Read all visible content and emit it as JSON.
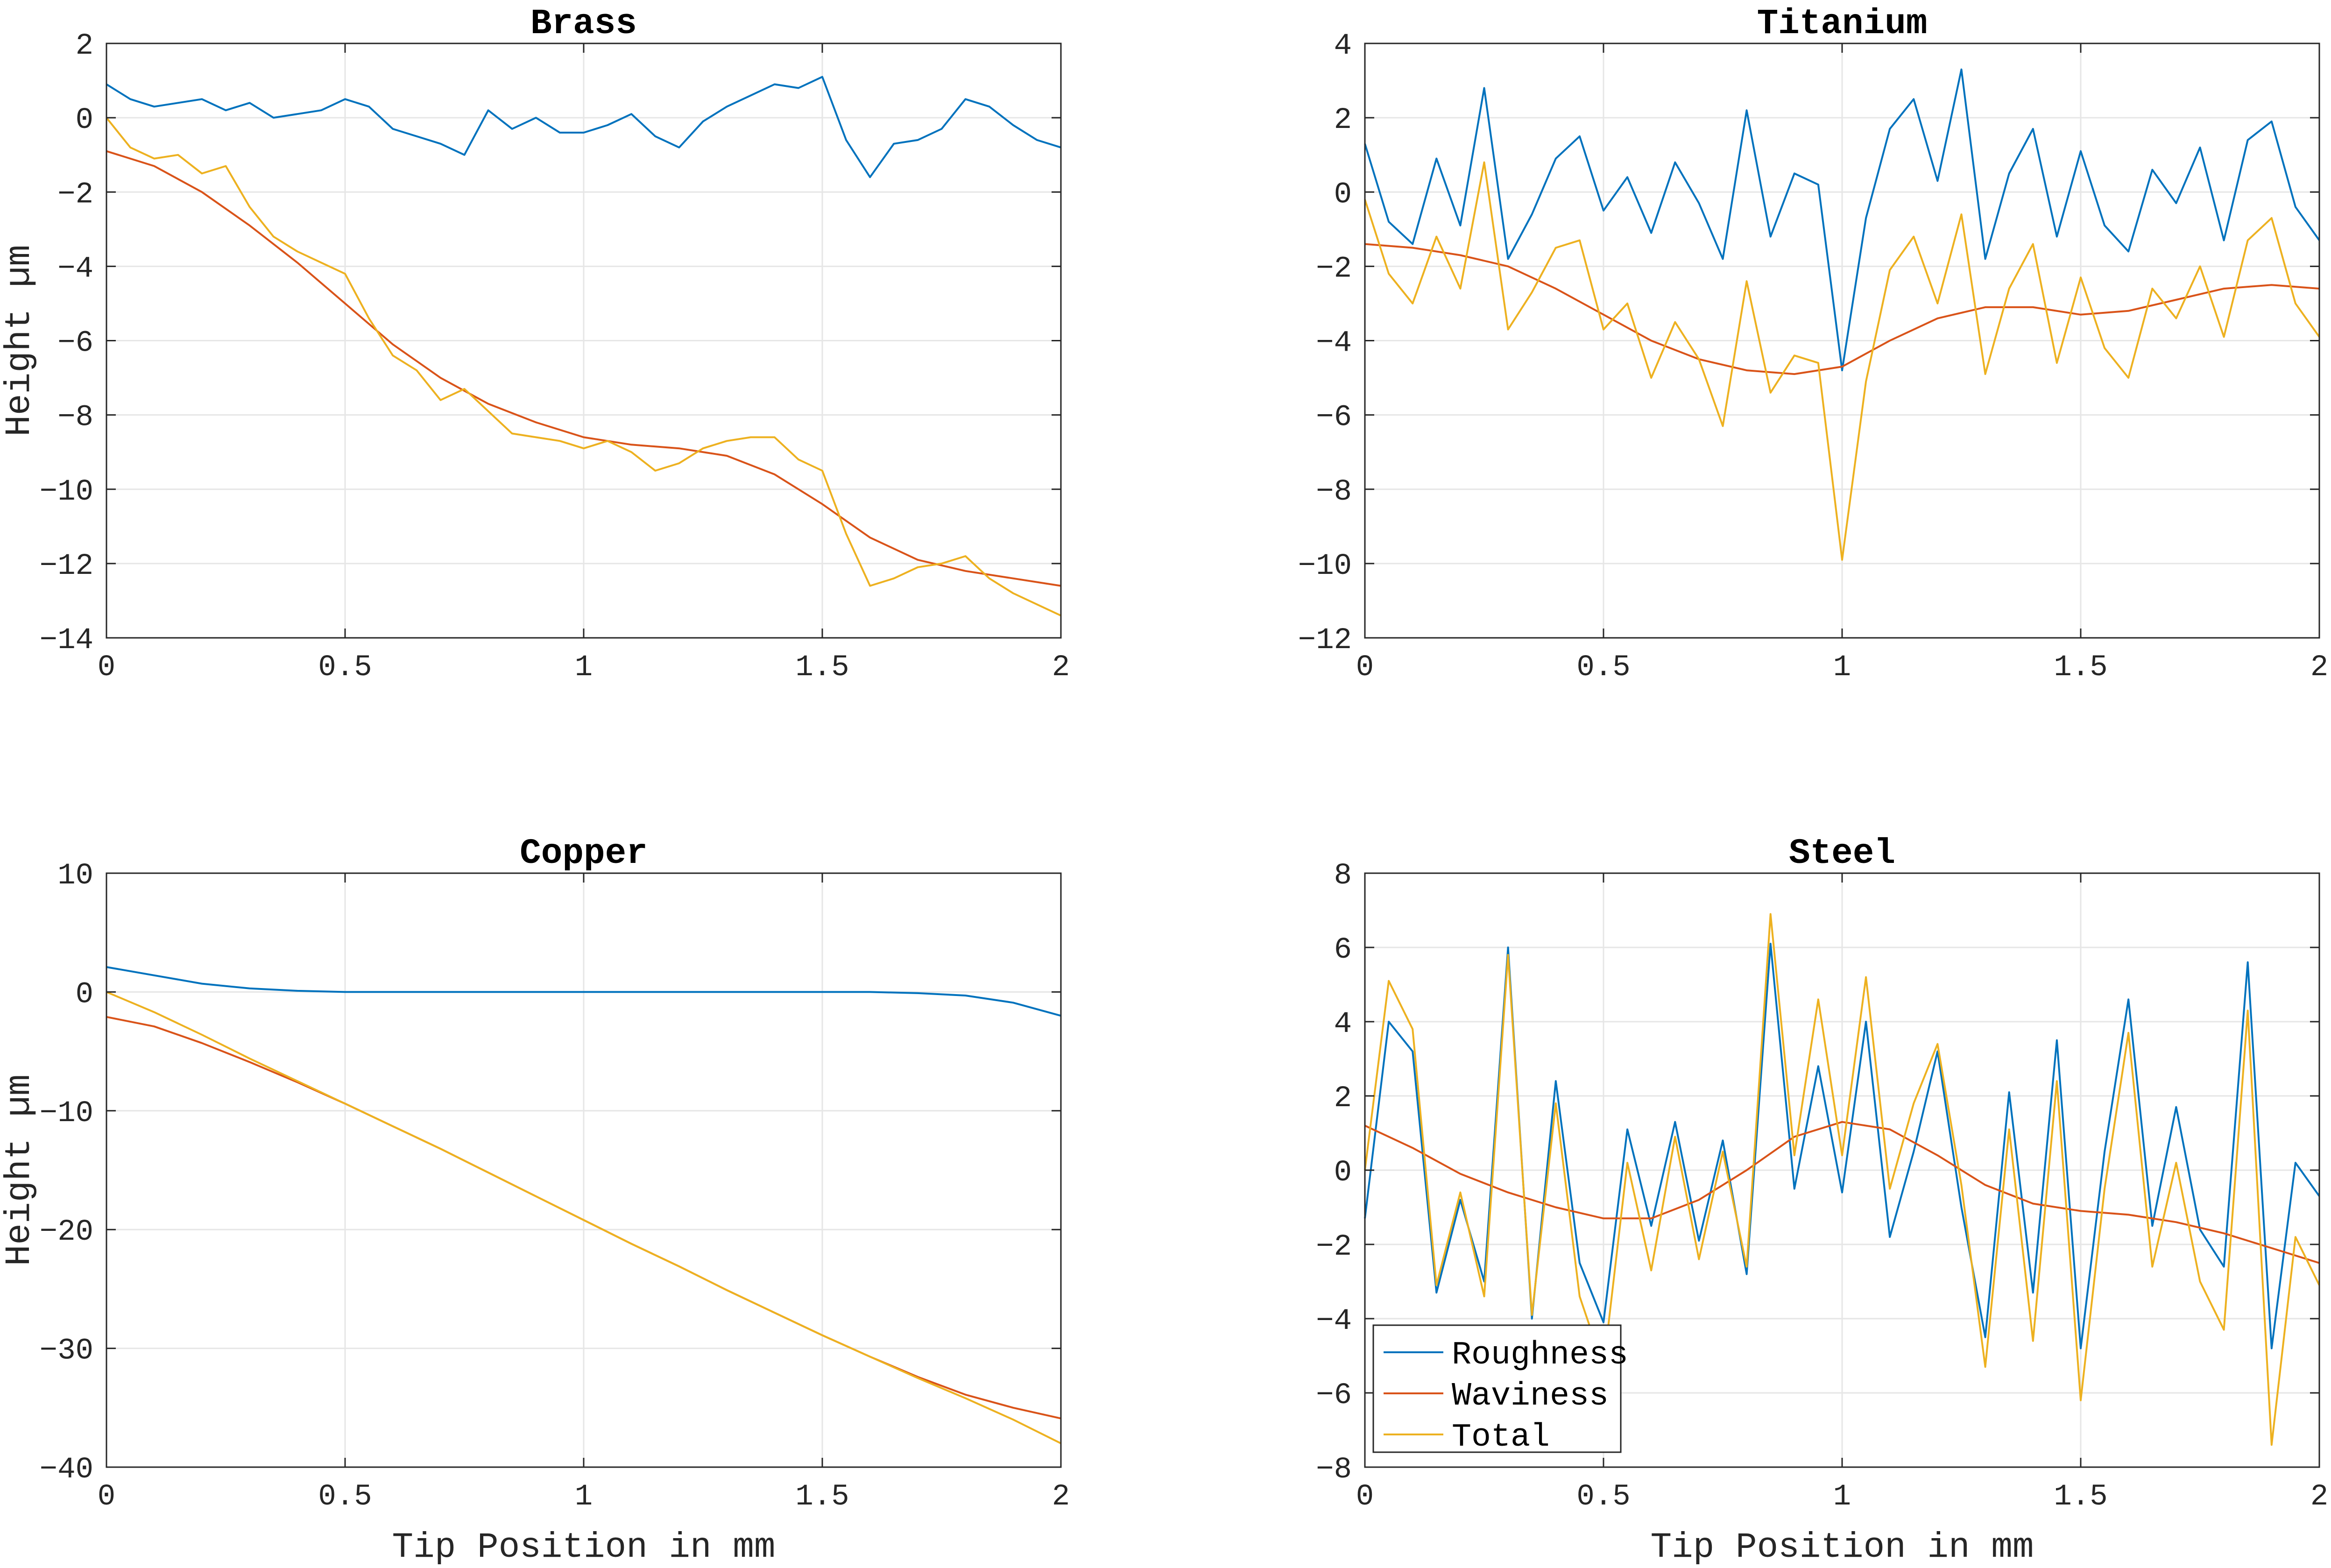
{
  "chart_data": [
    {
      "type": "line",
      "title": "Brass",
      "xlabel": "",
      "ylabel": "Height µm",
      "xlim": [
        0,
        2
      ],
      "ylim": [
        -14,
        2
      ],
      "xticks": [
        0,
        0.5,
        1,
        1.5,
        2
      ],
      "xtick_labels": [
        "0",
        "0.5",
        "1",
        "1.5",
        "2"
      ],
      "yticks": [
        -14,
        -12,
        -10,
        -8,
        -6,
        -4,
        -2,
        0,
        2
      ],
      "ytick_labels": [
        "−14",
        "−12",
        "−10",
        "−8",
        "−6",
        "−4",
        "−2",
        "0",
        "2"
      ],
      "grid": true,
      "series": [
        {
          "name": "Roughness",
          "color": "#0072BD",
          "x": [
            0,
            0.05,
            0.1,
            0.15,
            0.2,
            0.25,
            0.3,
            0.35,
            0.4,
            0.45,
            0.5,
            0.55,
            0.6,
            0.65,
            0.7,
            0.75,
            0.8,
            0.85,
            0.9,
            0.95,
            1.0,
            1.05,
            1.1,
            1.15,
            1.2,
            1.25,
            1.3,
            1.35,
            1.4,
            1.45,
            1.5,
            1.55,
            1.6,
            1.65,
            1.7,
            1.75,
            1.8,
            1.85,
            1.9,
            1.95,
            2.0
          ],
          "y": [
            0.9,
            0.5,
            0.3,
            0.4,
            0.5,
            0.2,
            0.4,
            0.0,
            0.1,
            0.2,
            0.5,
            0.3,
            -0.3,
            -0.5,
            -0.7,
            -1.0,
            0.2,
            -0.3,
            0.0,
            -0.4,
            -0.4,
            -0.2,
            0.1,
            -0.5,
            -0.8,
            -0.1,
            0.3,
            0.6,
            0.9,
            0.8,
            1.1,
            -0.6,
            -1.6,
            -0.7,
            -0.6,
            -0.3,
            0.5,
            0.3,
            -0.2,
            -0.6,
            -0.8
          ]
        },
        {
          "name": "Waviness",
          "color": "#D95319",
          "x": [
            0,
            0.1,
            0.2,
            0.3,
            0.4,
            0.5,
            0.6,
            0.7,
            0.8,
            0.9,
            1.0,
            1.1,
            1.2,
            1.3,
            1.4,
            1.5,
            1.6,
            1.7,
            1.8,
            1.9,
            2.0
          ],
          "y": [
            -0.9,
            -1.3,
            -2.0,
            -2.9,
            -3.9,
            -5.0,
            -6.1,
            -7.0,
            -7.7,
            -8.2,
            -8.6,
            -8.8,
            -8.9,
            -9.1,
            -9.6,
            -10.4,
            -11.3,
            -11.9,
            -12.2,
            -12.4,
            -12.6
          ]
        },
        {
          "name": "Total",
          "color": "#EDB120",
          "x": [
            0,
            0.05,
            0.1,
            0.15,
            0.2,
            0.25,
            0.3,
            0.35,
            0.4,
            0.45,
            0.5,
            0.55,
            0.6,
            0.65,
            0.7,
            0.75,
            0.8,
            0.85,
            0.9,
            0.95,
            1.0,
            1.05,
            1.1,
            1.15,
            1.2,
            1.25,
            1.3,
            1.35,
            1.4,
            1.45,
            1.5,
            1.55,
            1.6,
            1.65,
            1.7,
            1.75,
            1.8,
            1.85,
            1.9,
            1.95,
            2.0
          ],
          "y": [
            0.0,
            -0.8,
            -1.1,
            -1.0,
            -1.5,
            -1.3,
            -2.4,
            -3.2,
            -3.6,
            -3.9,
            -4.2,
            -5.4,
            -6.4,
            -6.8,
            -7.6,
            -7.3,
            -7.9,
            -8.5,
            -8.6,
            -8.7,
            -8.9,
            -8.7,
            -9.0,
            -9.5,
            -9.3,
            -8.9,
            -8.7,
            -8.6,
            -8.6,
            -9.2,
            -9.5,
            -11.2,
            -12.6,
            -12.4,
            -12.1,
            -12.0,
            -11.8,
            -12.4,
            -12.8,
            -13.1,
            -13.4
          ]
        }
      ]
    },
    {
      "type": "line",
      "title": "Titanium",
      "xlabel": "",
      "ylabel": "",
      "xlim": [
        0,
        2
      ],
      "ylim": [
        -12,
        4
      ],
      "xticks": [
        0,
        0.5,
        1,
        1.5,
        2
      ],
      "xtick_labels": [
        "0",
        "0.5",
        "1",
        "1.5",
        "2"
      ],
      "yticks": [
        -12,
        -10,
        -8,
        -6,
        -4,
        -2,
        0,
        2,
        4
      ],
      "ytick_labels": [
        "−12",
        "−10",
        "−8",
        "−6",
        "−4",
        "−2",
        "0",
        "2",
        "4"
      ],
      "grid": true,
      "series": [
        {
          "name": "Roughness",
          "color": "#0072BD",
          "x": [
            0,
            0.05,
            0.1,
            0.15,
            0.2,
            0.25,
            0.3,
            0.35,
            0.4,
            0.45,
            0.5,
            0.55,
            0.6,
            0.65,
            0.7,
            0.75,
            0.8,
            0.85,
            0.9,
            0.95,
            1.0,
            1.05,
            1.1,
            1.15,
            1.2,
            1.25,
            1.3,
            1.35,
            1.4,
            1.45,
            1.5,
            1.55,
            1.6,
            1.65,
            1.7,
            1.75,
            1.8,
            1.85,
            1.9,
            1.95,
            2.0
          ],
          "y": [
            1.3,
            -0.8,
            -1.4,
            0.9,
            -0.9,
            2.8,
            -1.8,
            -0.6,
            0.9,
            1.5,
            -0.5,
            0.4,
            -1.1,
            0.8,
            -0.3,
            -1.8,
            2.2,
            -1.2,
            0.5,
            0.2,
            -4.8,
            -0.7,
            1.7,
            2.5,
            0.3,
            3.3,
            -1.8,
            0.5,
            1.7,
            -1.2,
            1.1,
            -0.9,
            -1.6,
            0.6,
            -0.3,
            1.2,
            -1.3,
            1.4,
            1.9,
            -0.4,
            -1.3
          ]
        },
        {
          "name": "Waviness",
          "color": "#D95319",
          "x": [
            0,
            0.1,
            0.2,
            0.3,
            0.4,
            0.5,
            0.6,
            0.7,
            0.8,
            0.9,
            1.0,
            1.1,
            1.2,
            1.3,
            1.4,
            1.5,
            1.6,
            1.7,
            1.8,
            1.9,
            2.0
          ],
          "y": [
            -1.4,
            -1.5,
            -1.7,
            -2.0,
            -2.6,
            -3.3,
            -4.0,
            -4.5,
            -4.8,
            -4.9,
            -4.7,
            -4.0,
            -3.4,
            -3.1,
            -3.1,
            -3.3,
            -3.2,
            -2.9,
            -2.6,
            -2.5,
            -2.6
          ]
        },
        {
          "name": "Total",
          "color": "#EDB120",
          "x": [
            0,
            0.05,
            0.1,
            0.15,
            0.2,
            0.25,
            0.3,
            0.35,
            0.4,
            0.45,
            0.5,
            0.55,
            0.6,
            0.65,
            0.7,
            0.75,
            0.8,
            0.85,
            0.9,
            0.95,
            1.0,
            1.05,
            1.1,
            1.15,
            1.2,
            1.25,
            1.3,
            1.35,
            1.4,
            1.45,
            1.5,
            1.55,
            1.6,
            1.65,
            1.7,
            1.75,
            1.8,
            1.85,
            1.9,
            1.95,
            2.0
          ],
          "y": [
            -0.2,
            -2.2,
            -3.0,
            -1.2,
            -2.6,
            0.8,
            -3.7,
            -2.7,
            -1.5,
            -1.3,
            -3.7,
            -3.0,
            -5.0,
            -3.5,
            -4.5,
            -6.3,
            -2.4,
            -5.4,
            -4.4,
            -4.6,
            -9.9,
            -5.1,
            -2.1,
            -1.2,
            -3.0,
            -0.6,
            -4.9,
            -2.6,
            -1.4,
            -4.6,
            -2.3,
            -4.2,
            -5.0,
            -2.6,
            -3.4,
            -2.0,
            -3.9,
            -1.3,
            -0.7,
            -3.0,
            -3.9
          ]
        }
      ]
    },
    {
      "type": "line",
      "title": "Copper",
      "xlabel": "Tip Position in mm",
      "ylabel": "Height µm",
      "xlim": [
        0,
        2
      ],
      "ylim": [
        -40,
        10
      ],
      "xticks": [
        0,
        0.5,
        1,
        1.5,
        2
      ],
      "xtick_labels": [
        "0",
        "0.5",
        "1",
        "1.5",
        "2"
      ],
      "yticks": [
        -40,
        -30,
        -20,
        -10,
        0,
        10
      ],
      "ytick_labels": [
        "−40",
        "−30",
        "−20",
        "−10",
        "0",
        "10"
      ],
      "grid": true,
      "series": [
        {
          "name": "Roughness",
          "color": "#0072BD",
          "x": [
            0,
            0.1,
            0.2,
            0.3,
            0.4,
            0.5,
            0.6,
            0.7,
            0.8,
            0.9,
            1.0,
            1.1,
            1.2,
            1.3,
            1.4,
            1.5,
            1.6,
            1.7,
            1.8,
            1.9,
            2.0
          ],
          "y": [
            2.1,
            1.4,
            0.7,
            0.3,
            0.1,
            0.0,
            0.0,
            0.0,
            0.0,
            0.0,
            0.0,
            0.0,
            0.0,
            0.0,
            0.0,
            0.0,
            0.0,
            -0.1,
            -0.3,
            -0.9,
            -2.0
          ]
        },
        {
          "name": "Waviness",
          "color": "#D95319",
          "x": [
            0,
            0.1,
            0.2,
            0.3,
            0.4,
            0.5,
            0.6,
            0.7,
            0.8,
            0.9,
            1.0,
            1.1,
            1.2,
            1.3,
            1.4,
            1.5,
            1.6,
            1.7,
            1.8,
            1.9,
            2.0
          ],
          "y": [
            -2.1,
            -2.9,
            -4.3,
            -5.9,
            -7.6,
            -9.4,
            -11.3,
            -13.2,
            -15.2,
            -17.2,
            -19.2,
            -21.2,
            -23.1,
            -25.1,
            -27.0,
            -28.9,
            -30.7,
            -32.4,
            -33.9,
            -35.0,
            -35.9
          ]
        },
        {
          "name": "Total",
          "color": "#EDB120",
          "x": [
            0,
            0.1,
            0.2,
            0.3,
            0.4,
            0.5,
            0.6,
            0.7,
            0.8,
            0.9,
            1.0,
            1.1,
            1.2,
            1.3,
            1.4,
            1.5,
            1.6,
            1.7,
            1.8,
            1.9,
            2.0
          ],
          "y": [
            0.0,
            -1.7,
            -3.6,
            -5.6,
            -7.5,
            -9.4,
            -11.3,
            -13.2,
            -15.2,
            -17.2,
            -19.2,
            -21.2,
            -23.1,
            -25.1,
            -27.0,
            -28.9,
            -30.7,
            -32.5,
            -34.2,
            -36.0,
            -38.0
          ]
        }
      ]
    },
    {
      "type": "line",
      "title": "Steel",
      "xlabel": "Tip Position in mm",
      "ylabel": "",
      "xlim": [
        0,
        2
      ],
      "ylim": [
        -8,
        8
      ],
      "xticks": [
        0,
        0.5,
        1,
        1.5,
        2
      ],
      "xtick_labels": [
        "0",
        "0.5",
        "1",
        "1.5",
        "2"
      ],
      "yticks": [
        -8,
        -6,
        -4,
        -2,
        0,
        2,
        4,
        6,
        8
      ],
      "ytick_labels": [
        "−8",
        "−6",
        "−4",
        "−2",
        "0",
        "2",
        "4",
        "6",
        "8"
      ],
      "grid": true,
      "legend": {
        "placement": "bottom-left",
        "entries": [
          "Roughness",
          "Waviness",
          "Total"
        ]
      },
      "series": [
        {
          "name": "Roughness",
          "color": "#0072BD",
          "x": [
            0,
            0.05,
            0.1,
            0.15,
            0.2,
            0.25,
            0.3,
            0.35,
            0.4,
            0.45,
            0.5,
            0.55,
            0.6,
            0.65,
            0.7,
            0.75,
            0.8,
            0.85,
            0.9,
            0.95,
            1.0,
            1.05,
            1.1,
            1.15,
            1.2,
            1.25,
            1.3,
            1.35,
            1.4,
            1.45,
            1.5,
            1.55,
            1.6,
            1.65,
            1.7,
            1.75,
            1.8,
            1.85,
            1.9,
            1.95,
            2.0
          ],
          "y": [
            -1.3,
            4.0,
            3.2,
            -3.3,
            -0.8,
            -3.0,
            6.0,
            -4.0,
            2.4,
            -2.5,
            -4.1,
            1.1,
            -1.5,
            1.3,
            -1.9,
            0.8,
            -2.8,
            6.1,
            -0.5,
            2.8,
            -0.6,
            4.0,
            -1.8,
            0.5,
            3.2,
            -1.0,
            -4.5,
            2.1,
            -3.3,
            3.5,
            -4.8,
            0.5,
            4.6,
            -1.5,
            1.7,
            -1.6,
            -2.6,
            5.6,
            -4.8,
            0.2,
            -0.7
          ]
        },
        {
          "name": "Waviness",
          "color": "#D95319",
          "x": [
            0,
            0.1,
            0.2,
            0.3,
            0.4,
            0.5,
            0.6,
            0.7,
            0.8,
            0.9,
            1.0,
            1.1,
            1.2,
            1.3,
            1.4,
            1.5,
            1.6,
            1.7,
            1.8,
            1.9,
            2.0
          ],
          "y": [
            1.2,
            0.6,
            -0.1,
            -0.6,
            -1.0,
            -1.3,
            -1.3,
            -0.8,
            0.0,
            0.9,
            1.3,
            1.1,
            0.4,
            -0.4,
            -0.9,
            -1.1,
            -1.2,
            -1.4,
            -1.7,
            -2.1,
            -2.5
          ]
        },
        {
          "name": "Total",
          "color": "#EDB120",
          "x": [
            0,
            0.05,
            0.1,
            0.15,
            0.2,
            0.25,
            0.3,
            0.35,
            0.4,
            0.45,
            0.5,
            0.55,
            0.6,
            0.65,
            0.7,
            0.75,
            0.8,
            0.85,
            0.9,
            0.95,
            1.0,
            1.05,
            1.1,
            1.15,
            1.2,
            1.25,
            1.3,
            1.35,
            1.4,
            1.45,
            1.5,
            1.55,
            1.6,
            1.65,
            1.7,
            1.75,
            1.8,
            1.85,
            1.9,
            1.95,
            2.0
          ],
          "y": [
            0.0,
            5.1,
            3.8,
            -3.1,
            -0.6,
            -3.4,
            5.8,
            -3.9,
            1.8,
            -3.4,
            -5.3,
            0.2,
            -2.7,
            0.9,
            -2.4,
            0.5,
            -2.6,
            6.9,
            0.4,
            4.6,
            0.4,
            5.2,
            -0.5,
            1.8,
            3.4,
            -0.4,
            -5.3,
            1.1,
            -4.6,
            2.4,
            -6.2,
            -0.5,
            3.7,
            -2.6,
            0.2,
            -3.0,
            -4.3,
            4.3,
            -7.4,
            -1.8,
            -3.1
          ]
        }
      ]
    }
  ]
}
